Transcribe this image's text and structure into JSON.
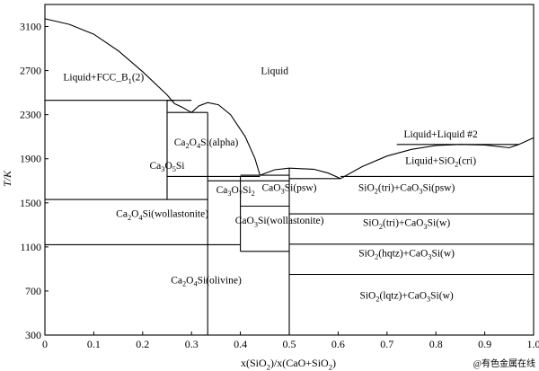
{
  "chart_data": {
    "type": "phase-diagram",
    "xlabel": "x(SiO2)/x(CaO+SiO2)",
    "ylabel": "T/K",
    "xlim": [
      0,
      1
    ],
    "ylim": [
      300,
      3300
    ],
    "x_ticks": [
      0,
      0.1,
      0.2,
      0.3,
      0.4,
      0.5,
      0.6,
      0.7,
      0.8,
      0.9,
      1.0
    ],
    "x_tick_labels": [
      "0",
      "0.1",
      "0.2",
      "0.3",
      "0.4",
      "0.5",
      "0.6",
      "0.7",
      "0.8",
      "0.9",
      "1.0"
    ],
    "y_ticks": [
      300,
      700,
      1100,
      1500,
      1900,
      2300,
      2700,
      3100
    ],
    "y_tick_labels": [
      "300",
      "700",
      "1100",
      "1500",
      "1900",
      "2300",
      "2700",
      "3100"
    ],
    "grid": false,
    "lines": [
      {
        "name": "liquidus-cao",
        "points": [
          [
            0,
            3170
          ],
          [
            0.05,
            3120
          ],
          [
            0.1,
            3030
          ],
          [
            0.15,
            2880
          ],
          [
            0.2,
            2690
          ],
          [
            0.25,
            2480
          ],
          [
            0.265,
            2400
          ]
        ]
      },
      {
        "name": "liquidus-c3s-peak",
        "points": [
          [
            0.265,
            2400
          ],
          [
            0.28,
            2370
          ],
          [
            0.3,
            2320
          ]
        ]
      },
      {
        "name": "liquidus-c2s",
        "points": [
          [
            0.3,
            2320
          ],
          [
            0.315,
            2380
          ],
          [
            0.333,
            2410
          ],
          [
            0.355,
            2390
          ],
          [
            0.38,
            2300
          ],
          [
            0.41,
            2100
          ],
          [
            0.43,
            1900
          ],
          [
            0.44,
            1750
          ]
        ]
      },
      {
        "name": "liquidus-cs",
        "points": [
          [
            0.44,
            1750
          ],
          [
            0.47,
            1800
          ],
          [
            0.5,
            1815
          ],
          [
            0.55,
            1805
          ],
          [
            0.58,
            1770
          ],
          [
            0.605,
            1720
          ]
        ]
      },
      {
        "name": "liquidus-silica",
        "points": [
          [
            0.605,
            1720
          ],
          [
            0.65,
            1830
          ],
          [
            0.7,
            1925
          ],
          [
            0.75,
            1985
          ],
          [
            0.8,
            2020
          ],
          [
            0.85,
            2030
          ],
          [
            0.9,
            2025
          ],
          [
            0.95,
            2000
          ],
          [
            0.97,
            2030
          ]
        ]
      },
      {
        "name": "liquidus-silica-end",
        "points": [
          [
            0.97,
            2030
          ],
          [
            1.0,
            2090
          ]
        ]
      },
      {
        "name": "iso-2430-left",
        "points": [
          [
            0,
            2430
          ],
          [
            0.265,
            2430
          ]
        ]
      },
      {
        "name": "iso-2430-right",
        "points": [
          [
            0.25,
            2430
          ],
          [
            0.3,
            2430
          ]
        ]
      },
      {
        "name": "iso-2320",
        "points": [
          [
            0.25,
            2320
          ],
          [
            0.333,
            2320
          ]
        ]
      },
      {
        "name": "iso-1740",
        "points": [
          [
            0.25,
            1740
          ],
          [
            0.44,
            1740
          ]
        ]
      },
      {
        "name": "iso-1720",
        "points": [
          [
            0.5,
            1720
          ],
          [
            0.605,
            1720
          ]
        ]
      },
      {
        "name": "iso-1740-right",
        "points": [
          [
            0.605,
            1740
          ],
          [
            1.0,
            1740
          ]
        ]
      },
      {
        "name": "iso-2030",
        "points": [
          [
            0.72,
            2030
          ],
          [
            0.97,
            2030
          ]
        ]
      },
      {
        "name": "iso-1700",
        "points": [
          [
            0.333,
            1700
          ],
          [
            0.5,
            1700
          ]
        ]
      },
      {
        "name": "iso-1530-left",
        "points": [
          [
            0,
            1530
          ],
          [
            0.25,
            1530
          ]
        ]
      },
      {
        "name": "iso-1530-mid",
        "points": [
          [
            0.25,
            1530
          ],
          [
            0.333,
            1530
          ]
        ]
      },
      {
        "name": "iso-1750-short",
        "points": [
          [
            0.4,
            1750
          ],
          [
            0.5,
            1750
          ]
        ]
      },
      {
        "name": "iso-1400",
        "points": [
          [
            0.5,
            1400
          ],
          [
            1.0,
            1400
          ]
        ]
      },
      {
        "name": "iso-1470",
        "points": [
          [
            0.4,
            1470
          ],
          [
            0.5,
            1470
          ]
        ]
      },
      {
        "name": "iso-1125",
        "points": [
          [
            0.5,
            1125
          ],
          [
            1.0,
            1125
          ]
        ]
      },
      {
        "name": "iso-1120-left",
        "points": [
          [
            0,
            1120
          ],
          [
            0.4,
            1120
          ]
        ]
      },
      {
        "name": "iso-1060",
        "points": [
          [
            0.4,
            1060
          ],
          [
            0.5,
            1060
          ]
        ]
      },
      {
        "name": "iso-850",
        "points": [
          [
            0.5,
            850
          ],
          [
            1.0,
            850
          ]
        ]
      },
      {
        "name": "v-0.25",
        "points": [
          [
            0.25,
            1530
          ],
          [
            0.25,
            2430
          ]
        ]
      },
      {
        "name": "v-0.333",
        "points": [
          [
            0.333,
            300
          ],
          [
            0.333,
            2320
          ]
        ]
      },
      {
        "name": "v-0.40",
        "points": [
          [
            0.4,
            1060
          ],
          [
            0.4,
            1740
          ]
        ]
      },
      {
        "name": "v-0.50",
        "points": [
          [
            0.5,
            300
          ],
          [
            0.5,
            1815
          ]
        ]
      }
    ],
    "labels": [
      {
        "text": "Liquid+FCC_B1(2)",
        "x": 0.12,
        "y": 2610
      },
      {
        "text": "Liquid",
        "x": 0.47,
        "y": 2670
      },
      {
        "text": "Ca2O4Si(alpha)",
        "x": 0.33,
        "y": 2020
      },
      {
        "text": "Ca3O5Si",
        "x": 0.25,
        "y": 1810
      },
      {
        "text": "Ca2O4Si(wollastonite)",
        "x": 0.24,
        "y": 1370
      },
      {
        "text": "Ca3O7Si2",
        "x": 0.39,
        "y": 1590
      },
      {
        "text": "CaO3Si(psw)",
        "x": 0.5,
        "y": 1610
      },
      {
        "text": "CaO3Si(wollastonite)",
        "x": 0.48,
        "y": 1310
      },
      {
        "text": "Ca2O4Si(olivine)",
        "x": 0.33,
        "y": 770
      },
      {
        "text": "Liquid+Liquid #2",
        "x": 0.81,
        "y": 2095
      },
      {
        "text": "Liquid+SiO2(cri)",
        "x": 0.81,
        "y": 1855
      },
      {
        "text": "SiO2(tri)+CaO3Si(psw)",
        "x": 0.74,
        "y": 1610
      },
      {
        "text": "SiO2(tri)+CaO3Si(w)",
        "x": 0.74,
        "y": 1290
      },
      {
        "text": "SiO2(hqtz)+CaO3Si(w)",
        "x": 0.74,
        "y": 1015
      },
      {
        "text": "SiO2(lqtz)+CaO3Si(w)",
        "x": 0.74,
        "y": 630
      }
    ]
  },
  "watermark": "@有色金属在线"
}
